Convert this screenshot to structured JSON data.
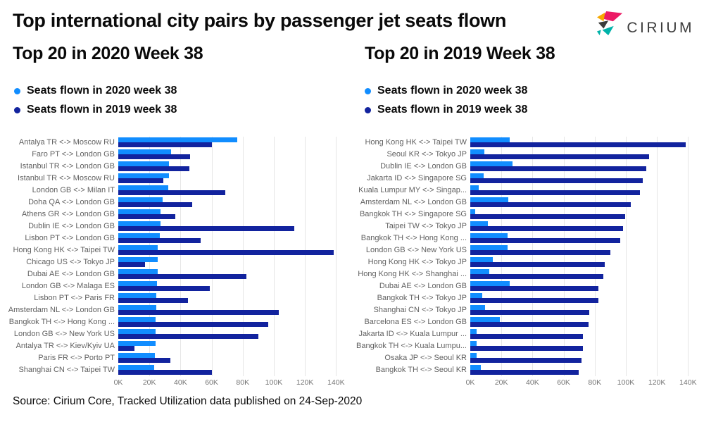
{
  "header": {
    "title": "Top international city pairs by passenger jet seats flown",
    "logo_text": "CIRIUM",
    "logo_colors": {
      "pink": "#EC1A65",
      "yellow": "#F7A800",
      "dark": "#3C3C3B",
      "teal": "#00B2A9"
    }
  },
  "footer": {
    "source": "Source: Cirium Core, Tracked Utilization data published on 24-Sep-2020"
  },
  "colors": {
    "seats_2020": "#118DFF",
    "seats_2019": "#12239E",
    "gridline": "#e6e6e6"
  },
  "chart_data": [
    {
      "type": "bar",
      "orientation": "horizontal",
      "title": "Top 20 in 2020 Week 38",
      "unit": "thousands of seats",
      "grid": true,
      "legend_position": "top-left",
      "xlim_k": [
        0,
        148
      ],
      "xticks": [
        {
          "label": "0K",
          "value": 0
        },
        {
          "label": "20K",
          "value": 20
        },
        {
          "label": "40K",
          "value": 40
        },
        {
          "label": "60K",
          "value": 60
        },
        {
          "label": "80K",
          "value": 80
        },
        {
          "label": "100K",
          "value": 100
        },
        {
          "label": "120K",
          "value": 120
        },
        {
          "label": "140K",
          "value": 140
        }
      ],
      "categories": [
        "Antalya TR <-> Moscow RU",
        "Faro PT <-> London GB",
        "Istanbul TR <-> London GB",
        "Istanbul TR <-> Moscow RU",
        "London GB <-> Milan IT",
        "Doha QA <-> London GB",
        "Athens GR <-> London GB",
        "Dublin IE <-> London GB",
        "Lisbon PT <-> London GB",
        "Hong Kong HK <-> Taipei TW",
        "Chicago US <-> Tokyo JP",
        "Dubai AE <-> London GB",
        "London GB <-> Malaga ES",
        "Lisbon PT <-> Paris FR",
        "Amsterdam NL <-> London GB",
        "Bangkok TH <-> Hong Kong ...",
        "London GB <-> New York US",
        "Antalya TR <-> Kiev/Kyiv UA",
        "Paris FR <-> Porto PT",
        "Shanghai CN <-> Taipei TW"
      ],
      "series": [
        {
          "name": "Seats flown in 2020 week 38",
          "color": "#118DFF",
          "values_k": [
            76.5,
            34,
            32.5,
            32.5,
            32,
            28.5,
            27,
            27,
            26.5,
            25.5,
            25.5,
            25.5,
            25,
            24.5,
            24.5,
            24,
            24,
            24,
            23.5,
            23
          ]
        },
        {
          "name": "Seats flown in 2019 week 38",
          "color": "#12239E",
          "values_k": [
            60,
            46,
            45.5,
            29,
            69,
            47.5,
            36.5,
            113,
            53,
            138.5,
            17,
            82.5,
            59,
            45,
            103,
            96.5,
            90,
            10.5,
            33.5,
            60
          ]
        }
      ]
    },
    {
      "type": "bar",
      "orientation": "horizontal",
      "title": "Top 20 in 2019 Week 38",
      "unit": "thousands of seats",
      "grid": true,
      "legend_position": "top-left",
      "xlim_k": [
        0,
        148
      ],
      "xticks": [
        {
          "label": "0K",
          "value": 0
        },
        {
          "label": "20K",
          "value": 20
        },
        {
          "label": "40K",
          "value": 40
        },
        {
          "label": "60K",
          "value": 60
        },
        {
          "label": "80K",
          "value": 80
        },
        {
          "label": "100K",
          "value": 100
        },
        {
          "label": "120K",
          "value": 120
        },
        {
          "label": "140K",
          "value": 140
        }
      ],
      "categories": [
        "Hong Kong HK <-> Taipei TW",
        "Seoul KR <-> Tokyo JP",
        "Dublin IE <-> London GB",
        "Jakarta ID <-> Singapore SG",
        "Kuala Lumpur MY <-> Singap...",
        "Amsterdam NL <-> London GB",
        "Bangkok TH <-> Singapore SG",
        "Taipei TW <-> Tokyo JP",
        "Bangkok TH <-> Hong Kong ...",
        "London GB <-> New York US",
        "Hong Kong HK <-> Tokyo JP",
        "Hong Kong HK <-> Shanghai ...",
        "Dubai AE <-> London GB",
        "Bangkok TH <-> Tokyo JP",
        "Shanghai CN <-> Tokyo JP",
        "Barcelona ES <-> London GB",
        "Jakarta ID <-> Kuala Lumpur ...",
        "Bangkok TH <-> Kuala Lumpu...",
        "Osaka JP <-> Seoul KR",
        "Bangkok TH <-> Seoul KR"
      ],
      "series": [
        {
          "name": "Seats flown in 2020 week 38",
          "color": "#118DFF",
          "values_k": [
            25.5,
            9,
            27,
            8.5,
            5.5,
            24.5,
            3,
            11.5,
            24,
            24,
            14.5,
            12,
            25.5,
            7.5,
            9.5,
            19,
            4,
            4,
            4,
            7
          ]
        },
        {
          "name": "Seats flown in 2019 week 38",
          "color": "#12239E",
          "values_k": [
            138.5,
            115,
            113,
            111,
            109,
            103,
            99.5,
            98,
            96.5,
            90,
            86.5,
            85.5,
            82.5,
            82.5,
            76.5,
            76,
            72.5,
            72.5,
            71.5,
            69.5
          ]
        }
      ]
    }
  ]
}
